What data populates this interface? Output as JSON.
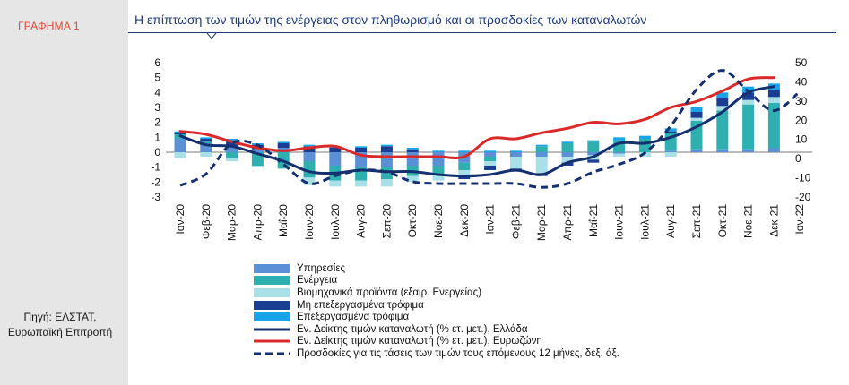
{
  "figure_label": "ΓΡΑΦΗΜΑ 1",
  "source_note": "Πηγή: ΕΛΣΤΑΤ, Ευρωπαϊκή Επιτροπή",
  "chart_data": {
    "type": "bar",
    "title": "Η επίπτωση των τιμών της ενέργειας στον πληθωρισμό και οι προσδοκίες των καταναλωτών",
    "categories": [
      "Ιαν-20",
      "Φεβ-20",
      "Μαρ-20",
      "Απρ-20",
      "Μαΐ-20",
      "Ιουν-20",
      "Ιουλ-20",
      "Αυγ-20",
      "Σεπ-20",
      "Οκτ-20",
      "Νοε-20",
      "Δεκ-20",
      "Ιαν-21",
      "Φεβ-21",
      "Μαρ-21",
      "Απρ-21",
      "Μαΐ-21",
      "Ιουν-21",
      "Ιουλ-21",
      "Αυγ-21",
      "Σεπ-21",
      "Οκτ-21",
      "Νοε-21",
      "Δεκ-21",
      "Ιαν-22"
    ],
    "y_left": {
      "ylim": [
        -3,
        6
      ],
      "ticks": [
        -3,
        -2,
        -1,
        0,
        1,
        2,
        3,
        4,
        5,
        6
      ]
    },
    "y_right": {
      "ylim": [
        -20,
        50
      ],
      "ticks": [
        -20,
        -10,
        0,
        10,
        20,
        30,
        40,
        50
      ]
    },
    "stacked_bars": [
      {
        "name": "Υπηρεσίες",
        "color": "#5b8fd6",
        "values": [
          0.9,
          0.6,
          0.4,
          0.2,
          0.3,
          -0.6,
          -0.9,
          -1.0,
          -1.0,
          -0.9,
          -0.9,
          -0.7,
          -0.3,
          -0.3,
          -0.3,
          -0.3,
          -0.2,
          -0.1,
          0.0,
          0.1,
          0.2,
          0.2,
          0.2,
          0.3,
          null
        ]
      },
      {
        "name": "Ενέργεια",
        "color": "#2fb0b0",
        "values": [
          0.3,
          0.1,
          -0.4,
          -0.9,
          -1.1,
          -1.1,
          -1.0,
          -0.9,
          -0.8,
          -0.7,
          -0.6,
          -0.5,
          -0.3,
          0.0,
          0.4,
          0.6,
          0.7,
          0.8,
          0.9,
          1.2,
          1.9,
          2.6,
          3.0,
          3.0,
          null
        ]
      },
      {
        "name": "Βιομηχανικά προϊόντα (εξαιρ. Ενεργείας)",
        "color": "#a9dfe6",
        "values": [
          -0.4,
          -0.3,
          -0.2,
          -0.1,
          0.0,
          -0.5,
          -0.4,
          -0.4,
          -0.5,
          -0.4,
          -0.4,
          -0.4,
          -0.3,
          -0.8,
          -1.1,
          -0.4,
          -0.3,
          -0.2,
          -0.3,
          -0.3,
          0.2,
          0.3,
          0.3,
          0.4,
          null
        ]
      },
      {
        "name": "Μη επεξεργασμένα τρόφιμα",
        "color": "#1a3e92",
        "values": [
          0.1,
          0.2,
          0.4,
          0.3,
          0.3,
          0.4,
          0.3,
          0.3,
          0.4,
          0.2,
          0.0,
          -0.2,
          -0.3,
          -0.2,
          -0.2,
          -0.2,
          -0.2,
          0.0,
          0.0,
          0.1,
          0.4,
          0.5,
          0.5,
          0.5,
          null
        ]
      },
      {
        "name": "Επεξεργασμένα τρόφιμα",
        "color": "#19a3e8",
        "values": [
          0.1,
          0.1,
          0.1,
          0.1,
          0.1,
          0.1,
          0.1,
          0.1,
          0.1,
          0.1,
          0.1,
          0.1,
          0.1,
          0.1,
          0.1,
          0.1,
          0.1,
          0.2,
          0.2,
          0.2,
          0.3,
          0.4,
          0.4,
          0.4,
          null
        ]
      }
    ],
    "lines": [
      {
        "name": "Εν. Δείκτης τιμών καταναλωτή (% ετ. μετ.), Ελλάδα",
        "color": "#14306e",
        "style": "solid",
        "axis": "left",
        "values": [
          1.1,
          0.5,
          0.4,
          -0.1,
          -0.6,
          -1.3,
          -1.4,
          -1.2,
          -1.3,
          -1.3,
          -1.5,
          -1.6,
          -1.5,
          -1.2,
          -1.5,
          -0.7,
          -0.3,
          0.6,
          0.6,
          1.0,
          1.7,
          2.7,
          4.0,
          4.4,
          null
        ]
      },
      {
        "name": "Εν. Δείκτης τιμών καταναλωτή (% ετ. μετ.), Ευρωζώνη",
        "color": "#d92a2a",
        "style": "solid",
        "axis": "left",
        "values": [
          1.4,
          1.2,
          0.7,
          0.3,
          0.1,
          0.3,
          0.4,
          -0.2,
          -0.3,
          -0.3,
          -0.3,
          -0.3,
          0.9,
          0.9,
          1.3,
          1.6,
          2.0,
          1.9,
          2.2,
          3.0,
          3.4,
          4.1,
          4.9,
          5.0,
          null
        ]
      },
      {
        "name": "Προσδοκίες για τις τάσεις των τιμών τους επόμενους 12 μήνες, δεξ. άξ.",
        "color": "#14306e",
        "style": "dashed",
        "axis": "right",
        "values": [
          -14,
          -8,
          8,
          7,
          -3,
          -13,
          -9,
          -6,
          -7,
          -12,
          -13,
          -13,
          -13,
          -13,
          -15,
          -13,
          -7,
          -3,
          3,
          17,
          36,
          46,
          35,
          25,
          35
        ]
      }
    ],
    "legend": "bottom",
    "grid": false
  }
}
